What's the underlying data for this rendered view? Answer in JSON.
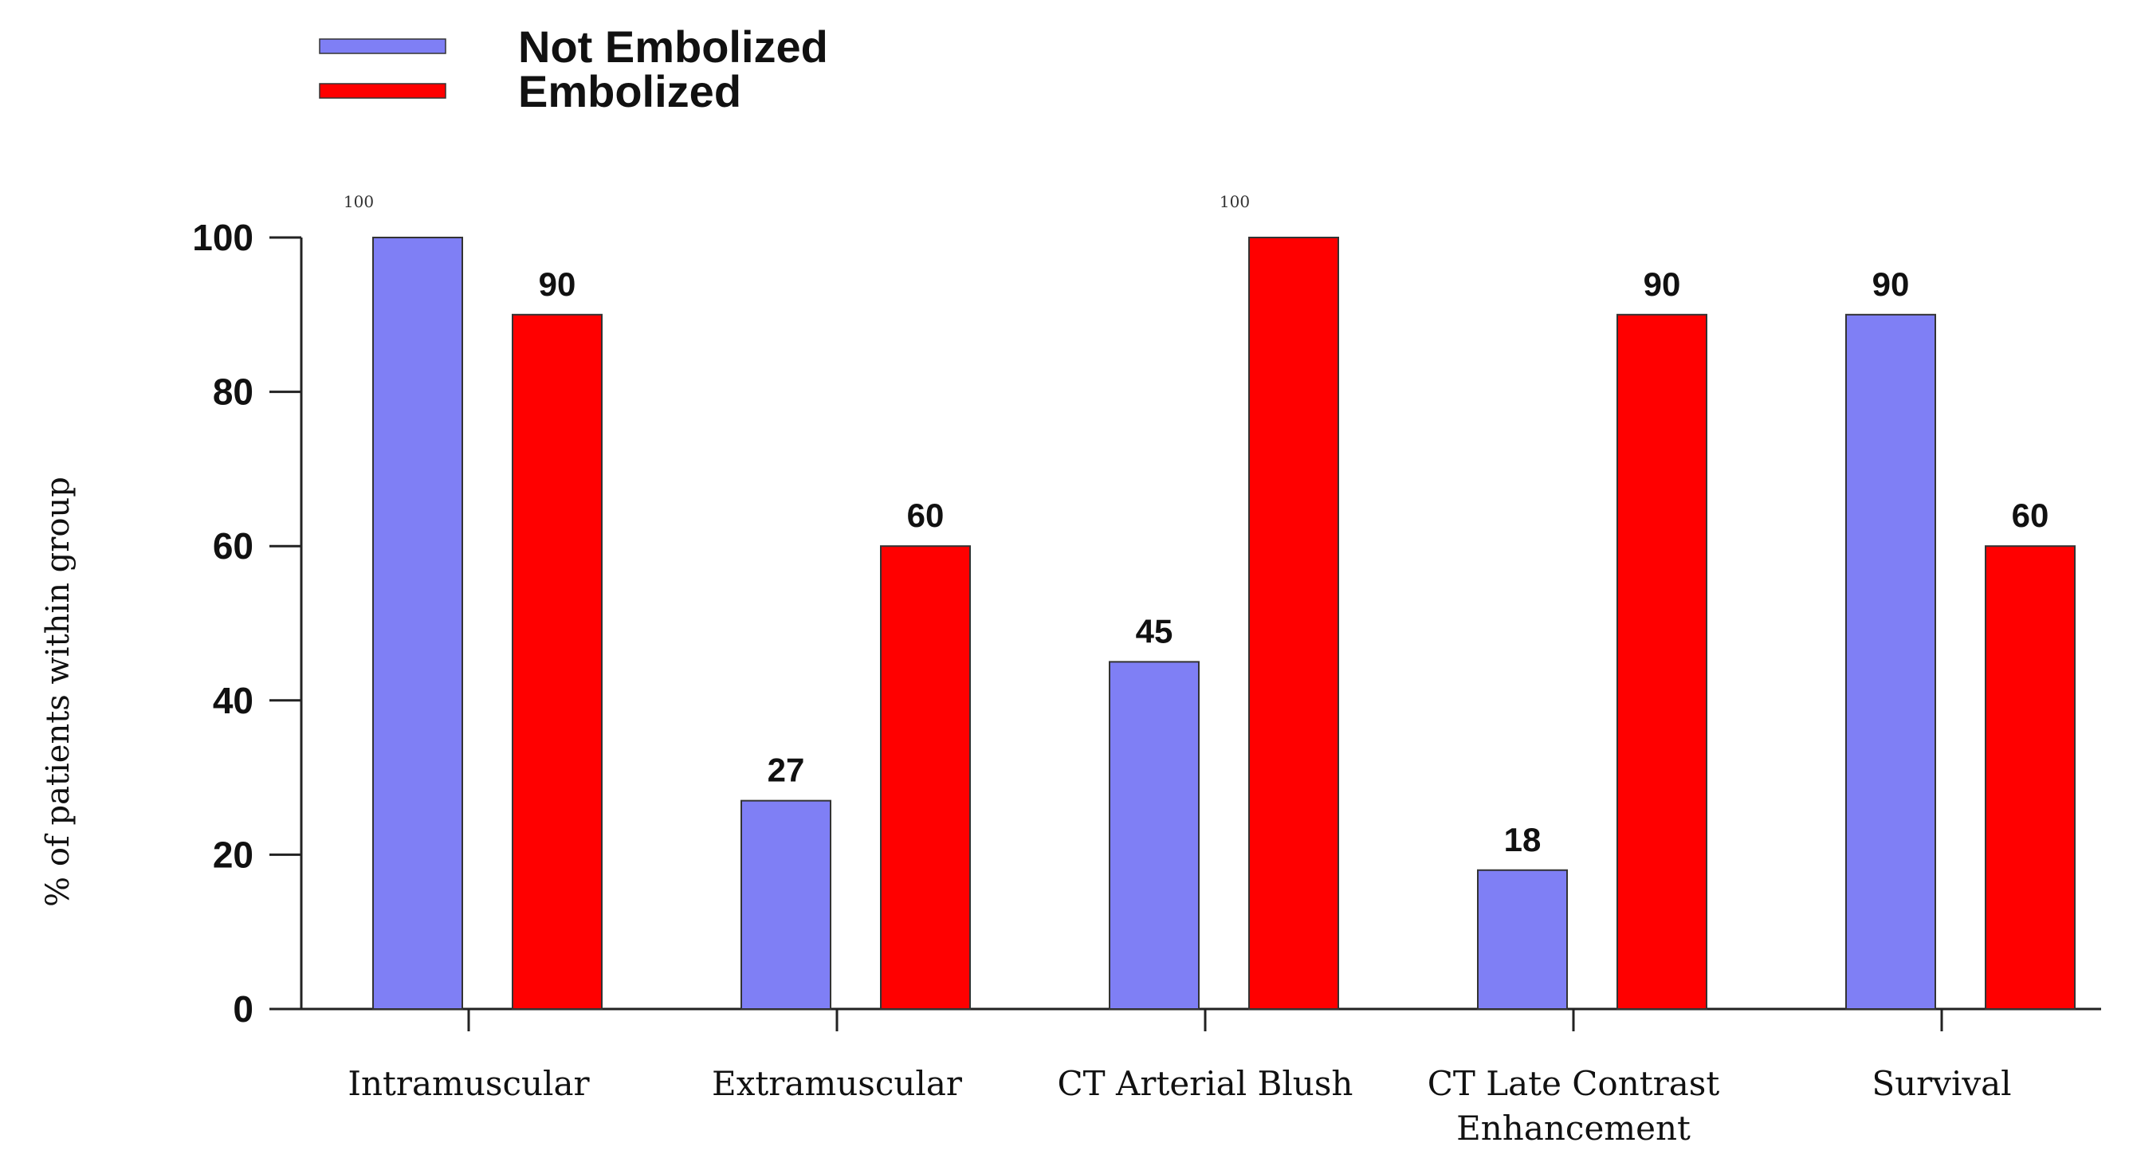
{
  "chart_data": {
    "type": "bar",
    "title": "",
    "xlabel": "",
    "ylabel": "% of patients within group",
    "ylim": [
      0,
      100
    ],
    "yticks": [
      0,
      20,
      40,
      60,
      80,
      100
    ],
    "grid": false,
    "legend_position": "top-left",
    "categories": [
      [
        "Intramuscular"
      ],
      [
        "Extramuscular"
      ],
      [
        "CT Arterial Blush"
      ],
      [
        "CT Late Contrast",
        "Enhancement"
      ],
      [
        "Survival"
      ]
    ],
    "series": [
      {
        "name": "Not Embolized",
        "color": "#7f7ff5",
        "values": [
          100,
          27,
          45,
          18,
          90
        ],
        "labels": [
          "100",
          "27",
          "45",
          "18",
          "90"
        ]
      },
      {
        "name": "Embolized",
        "color": "#ff0000",
        "values": [
          90,
          60,
          100,
          90,
          60
        ],
        "labels": [
          "90",
          "60",
          "100",
          "90",
          "60"
        ]
      }
    ]
  }
}
